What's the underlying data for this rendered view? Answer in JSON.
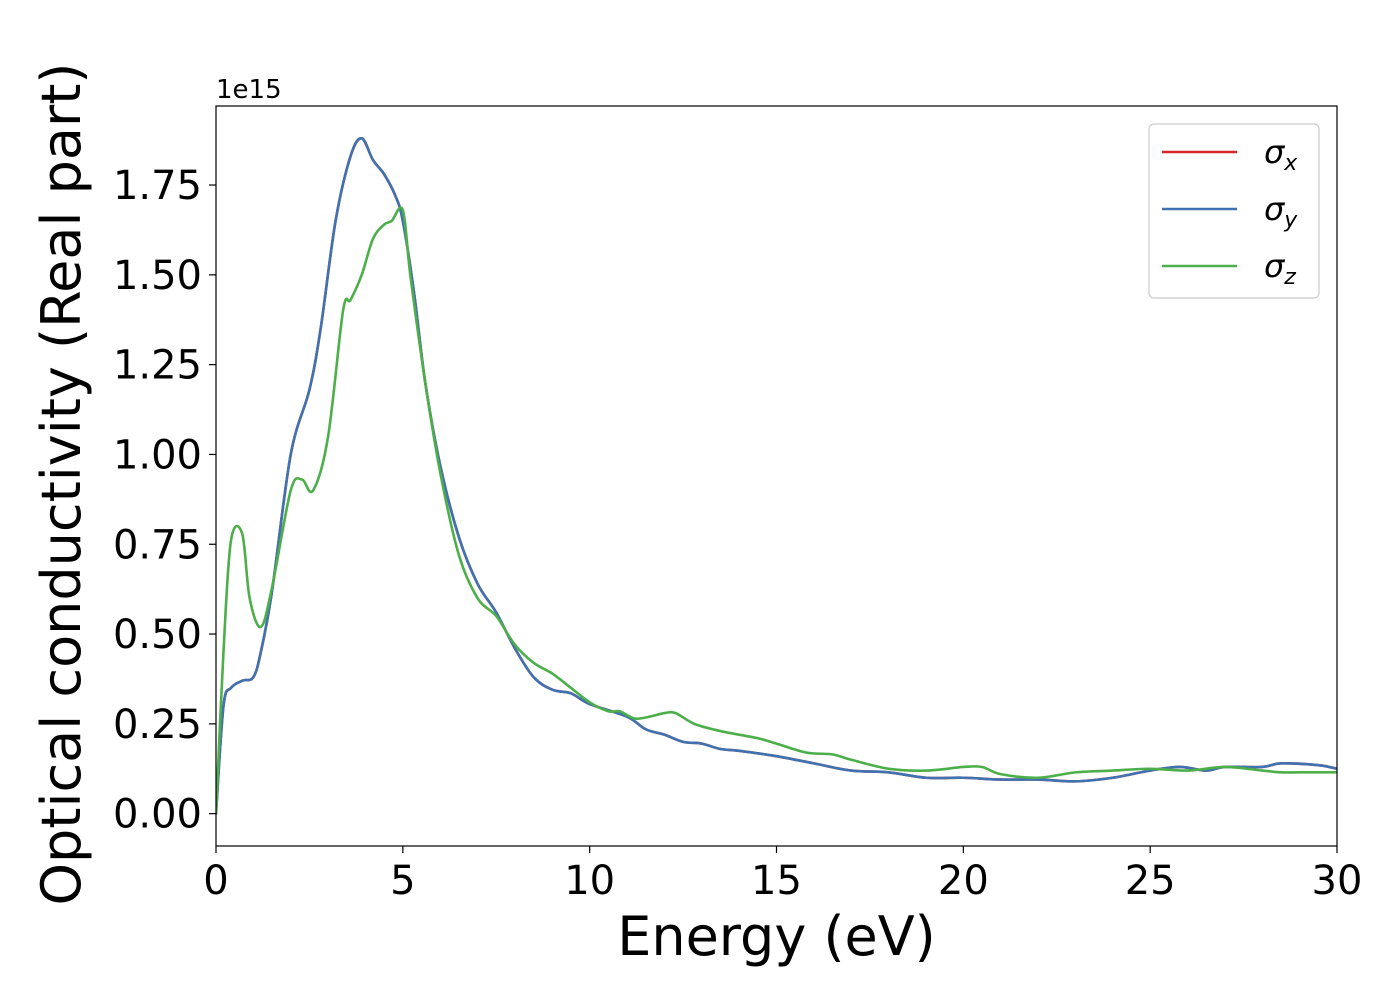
{
  "chart_data": {
    "type": "line",
    "xlabel": "Energy (eV)",
    "ylabel": "Optical conductivity (Real part)",
    "y_offset_text": "1e15",
    "xlim": [
      0,
      30
    ],
    "ylim": [
      -0.09,
      1.97
    ],
    "x_ticks": [
      0,
      5,
      10,
      15,
      20,
      25,
      30
    ],
    "x_tick_labels": [
      "0",
      "5",
      "10",
      "15",
      "20",
      "25",
      "30"
    ],
    "y_ticks": [
      0.0,
      0.25,
      0.5,
      0.75,
      1.0,
      1.25,
      1.5,
      1.75
    ],
    "y_tick_labels": [
      "0.00",
      "0.25",
      "0.50",
      "0.75",
      "1.00",
      "1.25",
      "1.50",
      "1.75"
    ],
    "grid": false,
    "legend_position": "top-right",
    "series": [
      {
        "name": "σ",
        "subscript": "x",
        "color": "#d62728",
        "x": [
          0,
          0.2,
          0.4,
          0.7,
          1.0,
          1.2,
          1.5,
          2.0,
          2.5,
          2.8,
          3.2,
          3.6,
          3.9,
          4.2,
          4.5,
          4.8,
          5.0,
          5.3,
          5.6,
          6.0,
          6.5,
          7.0,
          7.5,
          8.0,
          8.5,
          9.0,
          9.5,
          10.0,
          11.0,
          11.5,
          12.0,
          12.5,
          13.0,
          13.5,
          14.0,
          15.0,
          16.0,
          17.0,
          18.0,
          19.0,
          20.0,
          21.0,
          22.0,
          23.0,
          24.0,
          25.0,
          25.8,
          26.5,
          27.0,
          28.0,
          28.5,
          29.5,
          30.0
        ],
        "values": [
          0.0,
          0.3,
          0.35,
          0.37,
          0.38,
          0.45,
          0.62,
          1.0,
          1.18,
          1.35,
          1.65,
          1.83,
          1.88,
          1.82,
          1.78,
          1.72,
          1.65,
          1.45,
          1.2,
          0.97,
          0.77,
          0.64,
          0.56,
          0.46,
          0.38,
          0.345,
          0.335,
          0.305,
          0.27,
          0.235,
          0.22,
          0.2,
          0.195,
          0.18,
          0.175,
          0.16,
          0.14,
          0.12,
          0.115,
          0.1,
          0.1,
          0.095,
          0.095,
          0.09,
          0.1,
          0.12,
          0.13,
          0.12,
          0.13,
          0.13,
          0.14,
          0.135,
          0.125
        ]
      },
      {
        "name": "σ",
        "subscript": "y",
        "color": "#3f72b0",
        "x": [
          0,
          0.2,
          0.4,
          0.7,
          1.0,
          1.2,
          1.5,
          2.0,
          2.5,
          2.8,
          3.2,
          3.6,
          3.9,
          4.2,
          4.5,
          4.8,
          5.0,
          5.3,
          5.6,
          6.0,
          6.5,
          7.0,
          7.5,
          8.0,
          8.5,
          9.0,
          9.5,
          10.0,
          11.0,
          11.5,
          12.0,
          12.5,
          13.0,
          13.5,
          14.0,
          15.0,
          16.0,
          17.0,
          18.0,
          19.0,
          20.0,
          21.0,
          22.0,
          23.0,
          24.0,
          25.0,
          25.8,
          26.5,
          27.0,
          28.0,
          28.5,
          29.5,
          30.0
        ],
        "values": [
          0.0,
          0.3,
          0.35,
          0.37,
          0.38,
          0.45,
          0.62,
          1.0,
          1.18,
          1.35,
          1.65,
          1.83,
          1.88,
          1.82,
          1.78,
          1.72,
          1.65,
          1.45,
          1.2,
          0.97,
          0.77,
          0.64,
          0.56,
          0.46,
          0.38,
          0.345,
          0.335,
          0.305,
          0.27,
          0.235,
          0.22,
          0.2,
          0.195,
          0.18,
          0.175,
          0.16,
          0.14,
          0.12,
          0.115,
          0.1,
          0.1,
          0.095,
          0.095,
          0.09,
          0.1,
          0.12,
          0.13,
          0.12,
          0.13,
          0.13,
          0.14,
          0.135,
          0.125
        ]
      },
      {
        "name": "σ",
        "subscript": "z",
        "color": "#4daf4a",
        "x": [
          0,
          0.2,
          0.4,
          0.7,
          0.9,
          1.2,
          1.5,
          2.0,
          2.3,
          2.6,
          3.0,
          3.4,
          3.6,
          3.9,
          4.2,
          4.5,
          4.7,
          5.0,
          5.2,
          5.6,
          6.0,
          6.5,
          7.0,
          7.5,
          8.0,
          8.5,
          9.0,
          9.5,
          10.0,
          10.5,
          10.8,
          11.2,
          11.6,
          12.0,
          12.3,
          12.8,
          13.5,
          14.5,
          15.0,
          15.8,
          16.5,
          17.0,
          18.0,
          19.0,
          20.0,
          20.5,
          21.0,
          22.0,
          23.0,
          24.0,
          25.0,
          26.0,
          27.0,
          28.0,
          28.5,
          29.0,
          29.5,
          30.0
        ],
        "values": [
          0.0,
          0.45,
          0.76,
          0.78,
          0.6,
          0.52,
          0.63,
          0.9,
          0.93,
          0.9,
          1.05,
          1.4,
          1.43,
          1.5,
          1.6,
          1.64,
          1.65,
          1.68,
          1.5,
          1.2,
          0.95,
          0.72,
          0.6,
          0.55,
          0.47,
          0.42,
          0.39,
          0.35,
          0.31,
          0.285,
          0.285,
          0.265,
          0.27,
          0.28,
          0.28,
          0.25,
          0.23,
          0.21,
          0.195,
          0.17,
          0.165,
          0.15,
          0.125,
          0.12,
          0.13,
          0.13,
          0.11,
          0.1,
          0.115,
          0.12,
          0.125,
          0.12,
          0.13,
          0.12,
          0.115,
          0.115,
          0.115,
          0.115
        ]
      }
    ]
  }
}
